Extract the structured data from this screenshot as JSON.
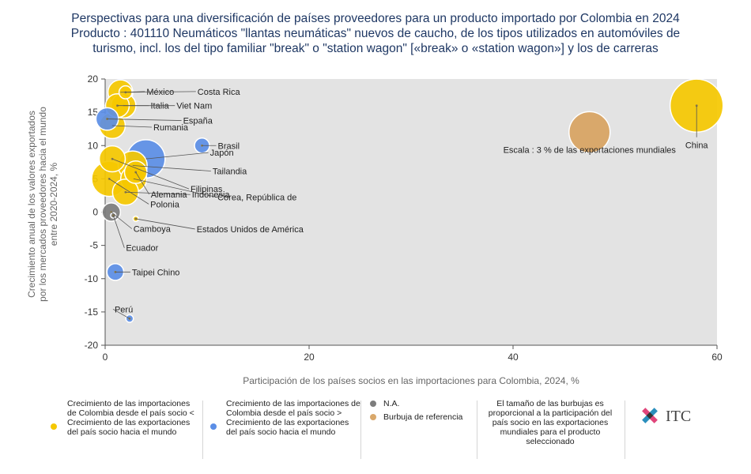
{
  "title": {
    "line1": "Perspectivas para una diversificación de países proveedores para un producto importado por Colombia en 2024",
    "line2": "Producto : 401110 Neumáticos \"llantas neumáticas\" nuevos de caucho, de los tipos utilizados en automóviles de",
    "line3": "turismo, incl. los del tipo familiar \"break\" o \"station wagon\" [«break» o «station wagon»] y los de carreras"
  },
  "colors": {
    "yellow": "#f5c800",
    "blue": "#5b8ee6",
    "gray": "#7d7d7d",
    "reference": "#d9a86b",
    "plot_bg": "#e3e3e3"
  },
  "chart_data": {
    "type": "scatter",
    "xlabel": "Participación de los países socios en las importaciones para Colombia, 2024, %",
    "ylabel": "Crecimiento anual de los valores exportados por los mercados proveedores hacia el mundo entre 2020-2024, %",
    "xlim": [
      0,
      60
    ],
    "ylim": [
      -20,
      20
    ],
    "xticks": [
      0,
      20,
      40,
      60
    ],
    "yticks": [
      20,
      15,
      10,
      5,
      0,
      -5,
      -10,
      -15,
      -20
    ],
    "grid": false,
    "points": [
      {
        "label": "China",
        "x": 58,
        "y": 16,
        "size": 5.0,
        "category": "yellow"
      },
      {
        "label": "México",
        "x": 1.5,
        "y": 18,
        "size": 1.1,
        "category": "yellow"
      },
      {
        "label": "Costa Rica",
        "x": 2,
        "y": 18,
        "size": 0.3,
        "category": "yellow"
      },
      {
        "label": "Italia",
        "x": 1.2,
        "y": 16,
        "size": 1.0,
        "category": "yellow"
      },
      {
        "label": "Viet Nam",
        "x": 1.8,
        "y": 16,
        "size": 1.1,
        "category": "yellow"
      },
      {
        "label": "España",
        "x": 0.2,
        "y": 14,
        "size": 0.9,
        "category": "blue"
      },
      {
        "label": "Rumania",
        "x": 0.7,
        "y": 13,
        "size": 1.2,
        "category": "yellow"
      },
      {
        "label": "Japón",
        "x": 4,
        "y": 8,
        "size": 2.6,
        "category": "blue"
      },
      {
        "label": "Brasil",
        "x": 9.5,
        "y": 10,
        "size": 0.4,
        "category": "blue"
      },
      {
        "label": "Tailandia",
        "x": 2.7,
        "y": 7,
        "size": 1.5,
        "category": "yellow"
      },
      {
        "label": "Filipinas",
        "x": 0.7,
        "y": 8,
        "size": 1.2,
        "category": "yellow"
      },
      {
        "label": "Corea, República de",
        "x": 2.8,
        "y": 5,
        "size": 1.2,
        "category": "yellow"
      },
      {
        "label": "Polonia",
        "x": 0.4,
        "y": 5,
        "size": 2.2,
        "category": "yellow"
      },
      {
        "label": "Indonesia",
        "x": 2,
        "y": 3,
        "size": 1.2,
        "category": "yellow"
      },
      {
        "label": "Alemania",
        "x": 3,
        "y": 6,
        "size": 0.9,
        "category": "yellow"
      },
      {
        "label": "Estados Unidos de América",
        "x": 3,
        "y": -1,
        "size": 0.05,
        "category": "yellow"
      },
      {
        "label": "Camboya",
        "x": 0.6,
        "y": 0,
        "size": 0.6,
        "category": "gray"
      },
      {
        "label": "Ecuador",
        "x": 0.8,
        "y": -0.5,
        "size": 0.05,
        "category": "gray"
      },
      {
        "label": "Taipei Chino",
        "x": 1,
        "y": -9,
        "size": 0.5,
        "category": "blue"
      },
      {
        "label": "Perú",
        "x": 2.4,
        "y": -16,
        "size": 0.1,
        "category": "blue"
      }
    ],
    "reference_bubble": {
      "label": "Escala : 3 % de las exportaciones mundiales",
      "x": 47.5,
      "y": 12,
      "size": 3
    }
  },
  "legend": {
    "yellow": "Crecimiento de las importaciones de Colombia desde el país socio < Crecimiento de las exportaciones del país socio hacia el mundo",
    "blue": "Crecimiento de las importaciones de Colombia desde el país socio > Crecimiento de las exportaciones del país socio hacia el mundo",
    "na": "N.A.",
    "reference": "Burbuja de referencia",
    "size_note": "El tamaño de las burbujas es proporcional a la participación del país socio en las exportaciones mundiales para el producto seleccionado"
  },
  "logo": {
    "text": "ITC"
  }
}
